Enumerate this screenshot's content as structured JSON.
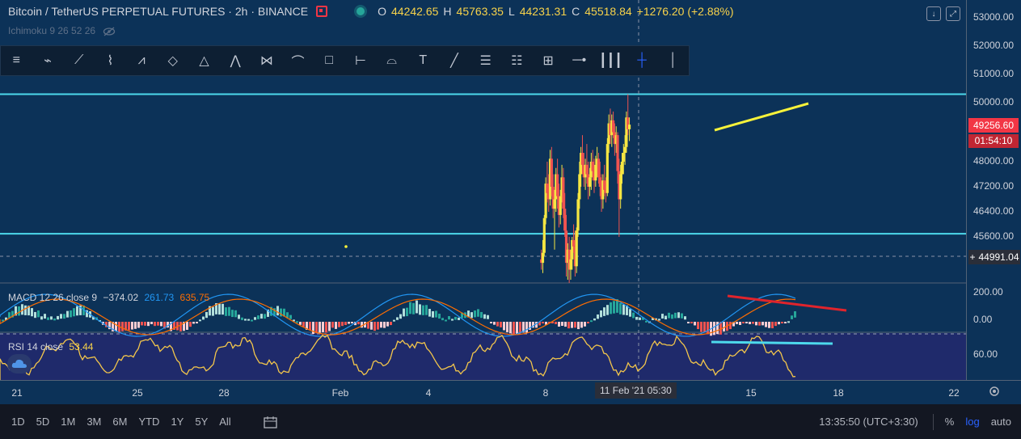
{
  "header": {
    "symbol": "Bitcoin / TetherUS PERPETUAL FUTURES · 2h · BINANCE",
    "ohlc": {
      "o_label": "O",
      "o": "44242.65",
      "h_label": "H",
      "h": "45763.35",
      "l_label": "L",
      "l": "44231.31",
      "c_label": "C",
      "c": "45518.84",
      "change": "+1276.20 (+2.88%)"
    },
    "indicator": "Ichimoku 9 26 52 26"
  },
  "toolbar": {
    "tools": [
      "parallel-channel",
      "regression-trend",
      "polyline",
      "path",
      "xabcd-pattern",
      "abcd-pattern",
      "triangle-pattern",
      "three-drives-pattern",
      "elliott-wave",
      "cycle-lines",
      "rectangle",
      "date-range",
      "brush",
      "anchored-text",
      "trend-line",
      "fib-retracement",
      "fib-extension",
      "price-range",
      "horizontal-ray",
      "fib-timezone",
      "crosshair",
      "vertical-line"
    ],
    "active_index": 20
  },
  "price_axis": {
    "labels": [
      "53000.00",
      "52000.00",
      "51000.00",
      "50000.00",
      "48000.00",
      "47200.00",
      "46400.00",
      "45600.00"
    ],
    "current_price": "49256.60",
    "countdown": "01:54:10",
    "crosshair_price": "44991.04",
    "macd_labels": [
      "200.00",
      "0.00"
    ],
    "rsi_labels": [
      "60.00"
    ]
  },
  "macd": {
    "label": "MACD 12 26 close 9",
    "v1": "−374.02",
    "v2": "261.73",
    "v3": "635.75"
  },
  "rsi": {
    "label": "RSI 14 close",
    "value": "53.44"
  },
  "time_axis": {
    "labels": [
      "21",
      "25",
      "28",
      "Feb",
      "4",
      "8",
      "15",
      "18",
      "22"
    ],
    "crosshair_time": "11 Feb '21   05:30"
  },
  "bottom_bar": {
    "ranges": [
      "1D",
      "5D",
      "1M",
      "3M",
      "6M",
      "YTD",
      "1Y",
      "5Y",
      "All"
    ],
    "clock": "13:35:50 (UTC+3:30)",
    "percent": "%",
    "log": "log",
    "auto": "auto"
  },
  "colors": {
    "background": "#0c3258",
    "up": "#f5e642",
    "down": "#ef5350",
    "accent": "#2962ff",
    "hline": "#4dd9ec",
    "trend_yellow": "#f7f23a",
    "trend_red": "#e0242c",
    "trend_cyan": "#4dd9ec",
    "rsi_line": "#f3c64b",
    "rsi_bg": "#1f2a6b"
  },
  "chart_data": {
    "type": "candlestick",
    "timeframe": "2h",
    "x_range": [
      "21",
      "22"
    ],
    "ylim": [
      44500,
      53500
    ],
    "horizontal_levels": [
      50300,
      45700
    ],
    "trendline_yellow": [
      [
        48750,
        15.4
      ],
      [
        49950,
        17.6
      ]
    ],
    "trendline_red": [
      [
        180,
        14.9
      ],
      [
        60,
        16.8
      ]
    ],
    "trendline_cyan": [
      [
        64,
        14.7
      ],
      [
        63,
        17.0
      ]
    ],
    "candles": [
      [
        7.85,
        44900,
        45200,
        44600,
        44800
      ],
      [
        7.9,
        44800,
        45500,
        44500,
        45100
      ],
      [
        7.95,
        45100,
        46300,
        45000,
        46200
      ],
      [
        8.0,
        46200,
        47500,
        46000,
        47300
      ],
      [
        8.05,
        47300,
        48000,
        46700,
        47000
      ],
      [
        8.1,
        47000,
        47600,
        46400,
        46800
      ],
      [
        8.15,
        46800,
        48400,
        46600,
        48100
      ],
      [
        8.2,
        48100,
        48500,
        46900,
        47200
      ],
      [
        8.25,
        47200,
        47600,
        46200,
        46500
      ],
      [
        8.3,
        46500,
        47100,
        45200,
        46800
      ],
      [
        8.35,
        46800,
        47800,
        46400,
        47600
      ],
      [
        8.4,
        47600,
        48100,
        46500,
        46900
      ],
      [
        8.45,
        46900,
        47300,
        45900,
        46300
      ],
      [
        8.5,
        46300,
        47100,
        46000,
        46900
      ],
      [
        8.55,
        46900,
        47900,
        46700,
        47500
      ],
      [
        8.6,
        47500,
        47800,
        46200,
        46500
      ],
      [
        8.65,
        46500,
        47000,
        45600,
        45800
      ],
      [
        8.7,
        45800,
        46300,
        44400,
        44800
      ],
      [
        8.75,
        44800,
        45400,
        44300,
        45200
      ],
      [
        8.8,
        45200,
        45600,
        44200,
        44600
      ],
      [
        8.85,
        44600,
        45200,
        44300,
        44900
      ],
      [
        8.9,
        44900,
        45600,
        44600,
        45500
      ],
      [
        8.95,
        45500,
        46000,
        45100,
        45300
      ],
      [
        9.0,
        45300,
        45800,
        44400,
        44700
      ],
      [
        9.05,
        44700,
        45900,
        44500,
        45800
      ],
      [
        9.1,
        45800,
        47000,
        45600,
        46800
      ],
      [
        9.15,
        46800,
        48000,
        46500,
        47600
      ],
      [
        9.2,
        47600,
        48500,
        47200,
        48300
      ],
      [
        9.25,
        48300,
        48900,
        47600,
        47900
      ],
      [
        9.3,
        47900,
        48300,
        47200,
        47500
      ],
      [
        9.35,
        47500,
        48100,
        47100,
        47900
      ],
      [
        9.4,
        47900,
        48600,
        47300,
        47600
      ],
      [
        9.45,
        47600,
        48000,
        46800,
        47200
      ],
      [
        9.5,
        47200,
        47800,
        46900,
        47500
      ],
      [
        9.55,
        47500,
        48300,
        47100,
        48000
      ],
      [
        9.6,
        48000,
        48400,
        47400,
        47700
      ],
      [
        9.65,
        47700,
        48100,
        47000,
        47400
      ],
      [
        9.7,
        47400,
        48200,
        47200,
        47900
      ],
      [
        9.75,
        47900,
        48500,
        47500,
        48100
      ],
      [
        9.8,
        48100,
        48300,
        47300,
        47500
      ],
      [
        9.85,
        47500,
        48000,
        46900,
        47200
      ],
      [
        9.9,
        47200,
        47600,
        46400,
        46800
      ],
      [
        9.95,
        46800,
        47600,
        46500,
        47400
      ],
      [
        10.0,
        47400,
        47900,
        46900,
        47100
      ],
      [
        10.05,
        47100,
        47500,
        46700,
        47000
      ],
      [
        10.1,
        47000,
        48800,
        46900,
        48600
      ],
      [
        10.15,
        48600,
        49600,
        48300,
        49300
      ],
      [
        10.2,
        49300,
        49800,
        48600,
        48900
      ],
      [
        10.25,
        48900,
        49600,
        48500,
        49400
      ],
      [
        10.3,
        49400,
        49700,
        48800,
        49000
      ],
      [
        10.35,
        49000,
        49300,
        48200,
        48600
      ],
      [
        10.4,
        48600,
        49200,
        48300,
        48900
      ],
      [
        10.45,
        48900,
        49000,
        47300,
        47700
      ],
      [
        10.5,
        47700,
        48100,
        45600,
        46800
      ],
      [
        10.55,
        46800,
        47900,
        46500,
        47600
      ],
      [
        10.6,
        47600,
        48300,
        47300,
        48000
      ],
      [
        10.65,
        48000,
        48600,
        47600,
        48300
      ],
      [
        10.7,
        48300,
        48900,
        47900,
        48500
      ],
      [
        10.75,
        48500,
        49700,
        48300,
        49500
      ],
      [
        10.8,
        49500,
        50300,
        48900,
        49100
      ],
      [
        10.85,
        49100,
        49500,
        48700,
        49256
      ]
    ]
  }
}
